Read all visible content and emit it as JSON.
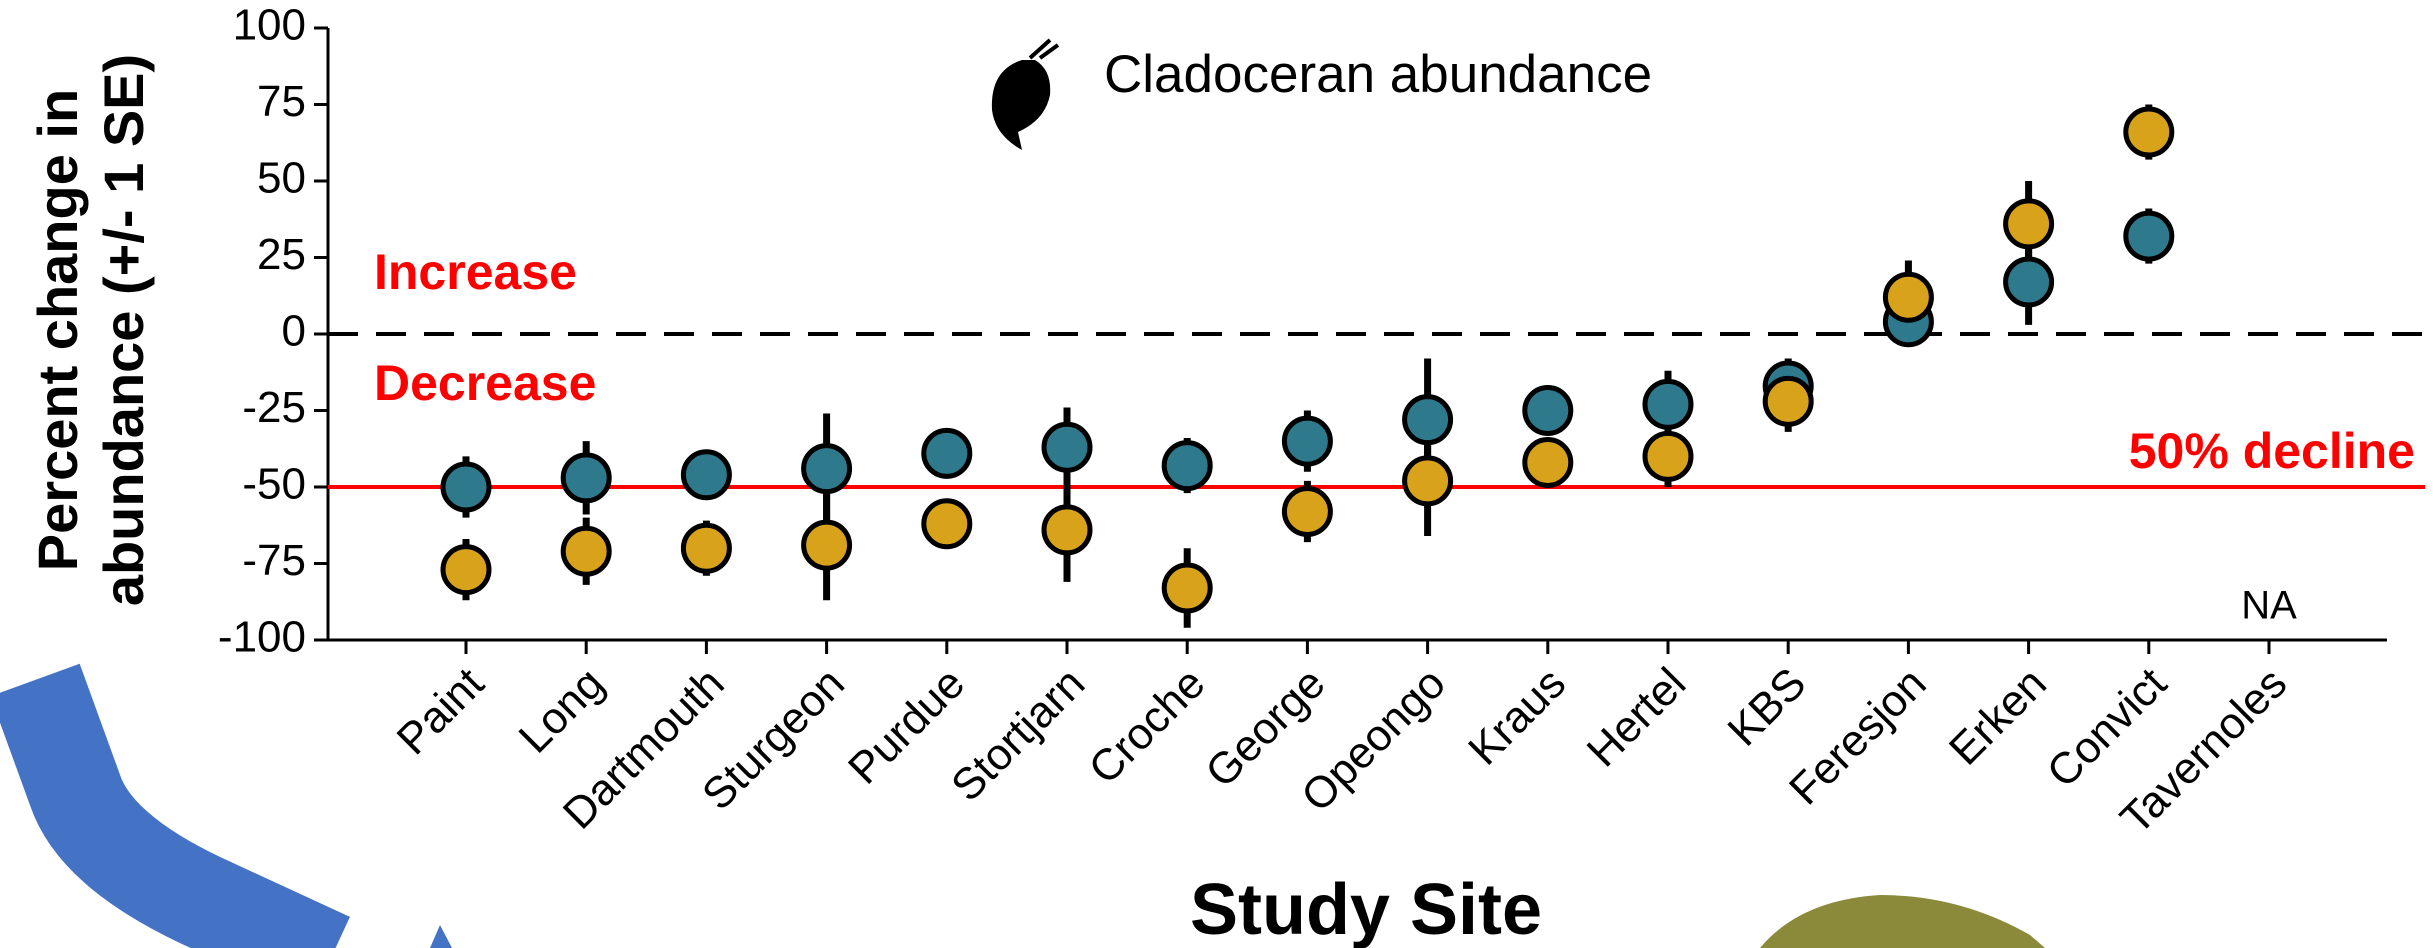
{
  "chart_data": {
    "type": "dot-error",
    "title": "Cladoceran abundance",
    "y_label": [
      "Percent change in",
      "abundance (+/- 1 SE)"
    ],
    "x_label": "Study Site",
    "categories": [
      "Paint",
      "Long",
      "Dartmouth",
      "Sturgeon",
      "Purdue",
      "Stortjarn",
      "Croche",
      "George",
      "Opeongo",
      "Kraus",
      "Hertel",
      "KBS",
      "Feresjon",
      "Erken",
      "Convict",
      "Tavernoles"
    ],
    "series": [
      {
        "color": "#2e7a8c",
        "values": [
          -50,
          -47,
          -46,
          -44,
          -39,
          -37,
          -43,
          -35,
          -28,
          -25,
          -23,
          -17,
          4,
          17,
          32,
          null
        ],
        "errors": [
          10,
          12,
          8,
          18,
          8,
          13,
          9,
          10,
          20,
          3,
          11,
          9,
          8,
          14,
          9,
          null
        ]
      },
      {
        "color": "#d9a21b",
        "values": [
          -77,
          -71,
          -70,
          -69,
          -62,
          -64,
          -83,
          -58,
          -48,
          -42,
          -40,
          -22,
          12,
          36,
          66,
          null
        ],
        "errors": [
          10,
          11,
          9,
          18,
          8,
          17,
          13,
          10,
          18,
          3,
          10,
          10,
          12,
          14,
          9,
          null
        ]
      }
    ],
    "ylim": [
      -100,
      100
    ],
    "yticks": [
      -100,
      -75,
      -50,
      -25,
      0,
      25,
      50,
      75,
      100
    ],
    "reference_lines": [
      {
        "value": 0,
        "style": "dashed",
        "color": "#000000"
      },
      {
        "value": -50,
        "style": "solid",
        "color": "#ff0000",
        "label": "50% decline"
      }
    ],
    "increase_label": "Increase",
    "decrease_label": "Decrease",
    "na_label": "NA"
  }
}
